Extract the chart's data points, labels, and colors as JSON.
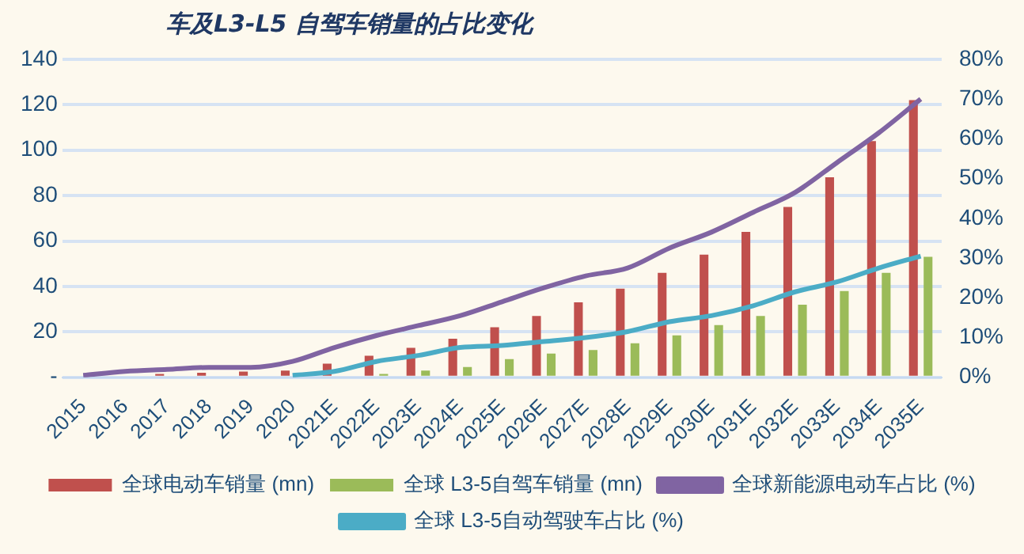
{
  "chart_data": {
    "type": "bar",
    "title": "车及L3-L5 自驾车销量的占比变化",
    "categories": [
      "2015",
      "2016",
      "2017",
      "2018",
      "2019",
      "2020",
      "2021E",
      "2022E",
      "2023E",
      "2024E",
      "2025E",
      "2026E",
      "2027E",
      "2028E",
      "2029E",
      "2030E",
      "2031E",
      "2032E",
      "2033E",
      "2034E",
      "2035E"
    ],
    "series": [
      {
        "name": "全球电动车销量 (mn)",
        "color": "#c0504d",
        "values": [
          null,
          null,
          1.5,
          2,
          2.5,
          3,
          6,
          9.5,
          13,
          17,
          22,
          27,
          33,
          39,
          46,
          54,
          64,
          75,
          88,
          104,
          122
        ]
      },
      {
        "name": "全球 L3-5自驾车销量 (mn)",
        "color": "#9bbb59",
        "values": [
          null,
          null,
          null,
          null,
          null,
          null,
          null,
          1.5,
          3,
          4.5,
          8,
          10.5,
          12,
          15,
          18.5,
          23,
          27,
          32,
          38,
          46,
          53
        ]
      },
      {
        "name": "全球新能源电动车占比 (%)",
        "type": "line",
        "axis": "y2",
        "color": "#8064a2",
        "values": [
          0.5,
          1.5,
          2,
          2.5,
          2.5,
          4,
          7.5,
          10.5,
          13,
          15.5,
          19,
          22.5,
          25.5,
          27.5,
          32.5,
          36.5,
          41.5,
          46.5,
          54,
          61.5,
          70
        ]
      },
      {
        "name": "全球 L3-5自动驾驶车占比 (%)",
        "type": "line",
        "axis": "y2",
        "color": "#4bacc6",
        "values": [
          null,
          null,
          null,
          null,
          null,
          0.5,
          1.5,
          4,
          5.5,
          7.5,
          8,
          9,
          10,
          11.5,
          14,
          15.5,
          18,
          21.5,
          24,
          27.5,
          30.5
        ]
      }
    ],
    "ylim": [
      0,
      140
    ],
    "yticks": [
      {
        "value": 0,
        "label": "-"
      },
      20,
      40,
      60,
      80,
      100,
      120,
      140
    ],
    "y2lim": [
      0,
      80
    ],
    "y2ticks": [
      {
        "value": 0,
        "label": "0%"
      },
      {
        "value": 10,
        "label": "10%"
      },
      {
        "value": 20,
        "label": "20%"
      },
      {
        "value": 30,
        "label": "30%"
      },
      {
        "value": 40,
        "label": "40%"
      },
      {
        "value": 50,
        "label": "50%"
      },
      {
        "value": 60,
        "label": "60%"
      },
      {
        "value": 70,
        "label": "70%"
      },
      {
        "value": 80,
        "label": "80%"
      }
    ],
    "grid": "y",
    "legend": "bottom",
    "marker": "none"
  }
}
